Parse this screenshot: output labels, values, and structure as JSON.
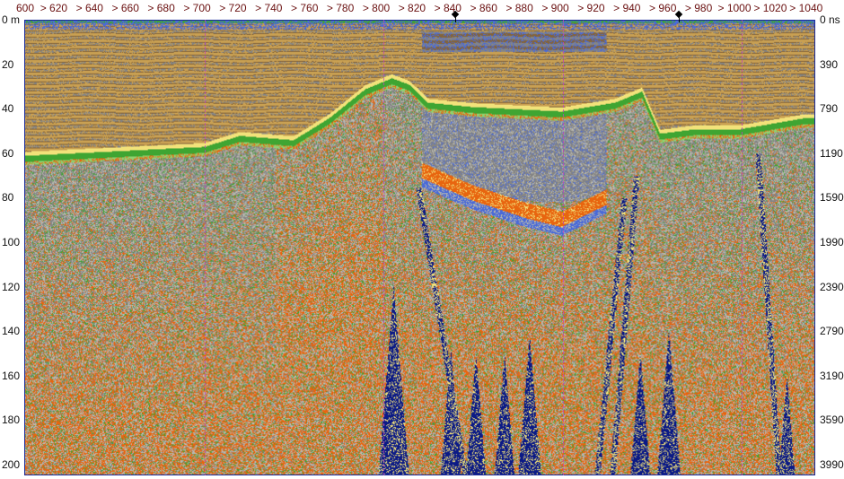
{
  "chart_data": {
    "type": "heatmap",
    "title": "",
    "x_axis": {
      "range": [
        600,
        1036
      ],
      "ticks": [
        600,
        620,
        640,
        660,
        680,
        700,
        720,
        740,
        760,
        780,
        800,
        820,
        840,
        860,
        880,
        900,
        920,
        940,
        960,
        980,
        1000,
        1020,
        1040
      ],
      "tick_labels": [
        "600",
        "> 620",
        "> 640",
        "> 660",
        "> 680",
        "> 700",
        "> 720",
        "> 740",
        "> 760",
        "> 780",
        "> 800",
        "> 820",
        "> 840",
        "> 860",
        "> 880",
        "> 900",
        "> 920",
        "> 940",
        "> 960",
        "> 980",
        "> 1000",
        "> 1020",
        "> 1040"
      ]
    },
    "y_axis_left": {
      "range": [
        0,
        205
      ],
      "ticks": [
        0,
        20,
        40,
        60,
        80,
        100,
        120,
        140,
        160,
        180,
        200
      ],
      "tick_labels": [
        "0 m",
        "20",
        "40",
        "60",
        "80",
        "100",
        "120",
        "140",
        "160",
        "180",
        "200"
      ]
    },
    "y_axis_right": {
      "ticks_at_depth": [
        0,
        20,
        40,
        60,
        80,
        100,
        120,
        140,
        160,
        180,
        200
      ],
      "tick_labels": [
        "0 ns",
        "390",
        "790",
        "1190",
        "1590",
        "1990",
        "2390",
        "2790",
        "3190",
        "3590",
        "3990"
      ]
    },
    "grid_lines_x": [
      700,
      800,
      900,
      1000
    ],
    "markers_x": [
      840,
      965
    ],
    "palette": {
      "tan": "#c9a052",
      "brown": "#84643a",
      "gray": "#858585",
      "lightgray": "#b8b8ae",
      "blue": "#4a6ad8",
      "darkblue": "#0b1a86",
      "green": "#3fa532",
      "lightgreen": "#8fd070",
      "orange": "#e8650f",
      "yellow": "#f2e27a"
    },
    "axis_label_color": "#6a1010",
    "frame_color": "#1a2a9a"
  }
}
